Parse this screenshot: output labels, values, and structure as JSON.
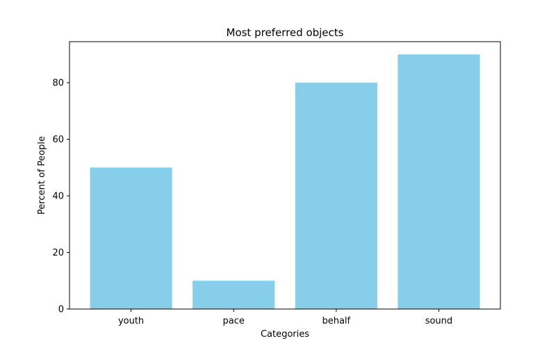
{
  "chart_data": {
    "type": "bar",
    "title": "Most preferred objects",
    "xlabel": "Categories",
    "ylabel": "Percent of People",
    "categories": [
      "youth",
      "pace",
      "behalf",
      "sound"
    ],
    "values": [
      50,
      10,
      80,
      90
    ],
    "ylim": [
      0,
      94.5
    ],
    "yticks": [
      0,
      20,
      40,
      60,
      80
    ],
    "bar_color": "#87ceeb",
    "grid": false,
    "legend": "none"
  }
}
